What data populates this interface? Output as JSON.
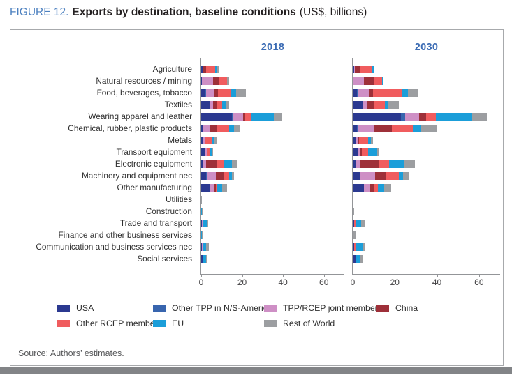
{
  "figure": {
    "label": "FIGURE 12.",
    "title": "Exports by destination, baseline conditions",
    "unit_note": "(US$, billions)"
  },
  "source": "Source: Authors’ estimates.",
  "chart_data": {
    "type": "bar",
    "orientation": "horizontal",
    "stacked": true,
    "unit": "US$, billions",
    "xlim": [
      0,
      70
    ],
    "xticks": [
      0,
      20,
      40,
      60
    ],
    "grid": false,
    "legend_position": "bottom",
    "categories": [
      "Agriculture",
      "Natural resources / mining",
      "Food, beverages, tobacco",
      "Textiles",
      "Wearing apparel and leather",
      "Chemical, rubber, plastic products",
      "Metals",
      "Transport equipment",
      "Electronic equipment",
      "Machinery and equipment nec",
      "Other manufacturing",
      "Utilities",
      "Construction",
      "Trade and transport",
      "Finance and other business services",
      "Communication and business services nec",
      "Social services"
    ],
    "panels": [
      {
        "title": "2018",
        "series": [
          {
            "name": "USA",
            "color": "#2b3990",
            "values": [
              0.7,
              0.3,
              2.0,
              4.0,
              15.0,
              1.0,
              1.0,
              1.7,
              1.0,
              2.4,
              4.4,
              0.0,
              0.1,
              0.5,
              0.1,
              0.4,
              1.0
            ]
          },
          {
            "name": "Other TPP in N/S-America",
            "color": "#3865ae",
            "values": [
              0.0,
              0.0,
              0.3,
              0.0,
              0.5,
              0.0,
              0.0,
              0.2,
              0.0,
              0.2,
              0.2,
              0.0,
              0.0,
              0.0,
              0.0,
              0.0,
              0.0
            ]
          },
          {
            "name": "TPP/RCEP joint members",
            "color": "#ce8fc5",
            "values": [
              0.3,
              5.5,
              4.0,
              1.7,
              5.0,
              3.0,
              0.7,
              0.7,
              1.4,
              4.7,
              2.0,
              0.0,
              0.0,
              0.2,
              0.0,
              0.2,
              0.0
            ]
          },
          {
            "name": "China",
            "color": "#9e3039",
            "values": [
              1.5,
              3.0,
              2.0,
              2.0,
              1.0,
              4.0,
              0.3,
              0.0,
              5.1,
              3.7,
              0.7,
              0.0,
              0.0,
              0.0,
              0.0,
              0.0,
              0.0
            ]
          },
          {
            "name": "Other RCEP members",
            "color": "#f05c5e",
            "values": [
              4.5,
              3.7,
              6.5,
              2.7,
              2.6,
              5.5,
              3.3,
              2.0,
              3.4,
              2.7,
              0.7,
              0.0,
              0.0,
              0.0,
              0.0,
              0.0,
              0.0
            ]
          },
          {
            "name": "EU",
            "color": "#1b9ed9",
            "values": [
              1.0,
              0.3,
              2.4,
              1.4,
              11.5,
              2.4,
              0.8,
              0.6,
              4.0,
              1.4,
              2.4,
              0.0,
              0.1,
              2.0,
              0.3,
              1.9,
              1.3
            ]
          },
          {
            "name": "Rest of World",
            "color": "#9c9ea1",
            "values": [
              0.7,
              0.7,
              4.7,
              2.0,
              4.0,
              3.0,
              1.4,
              0.5,
              2.8,
              1.0,
              2.3,
              0.2,
              0.5,
              0.8,
              0.8,
              1.2,
              0.7
            ]
          }
        ]
      },
      {
        "title": "2030",
        "series": [
          {
            "name": "USA",
            "color": "#2b3990",
            "values": [
              0.7,
              0.2,
              2.0,
              4.6,
              23.0,
              2.0,
              1.3,
              2.3,
              1.3,
              3.3,
              5.3,
              0.0,
              0.1,
              0.5,
              0.2,
              0.5,
              1.3
            ]
          },
          {
            "name": "Other TPP in N/S-America",
            "color": "#3865ae",
            "values": [
              0.0,
              0.0,
              0.5,
              0.0,
              2.0,
              0.5,
              0.0,
              0.2,
              0.0,
              0.3,
              0.0,
              0.0,
              0.0,
              0.0,
              0.0,
              0.0,
              0.0
            ]
          },
          {
            "name": "TPP/RCEP joint members",
            "color": "#ce8fc5",
            "values": [
              0.3,
              5.2,
              5.0,
              2.0,
              6.5,
              7.5,
              1.3,
              1.3,
              2.0,
              7.0,
              2.6,
              0.0,
              0.0,
              0.2,
              0.0,
              0.3,
              0.2
            ]
          },
          {
            "name": "China",
            "color": "#9e3039",
            "values": [
              2.6,
              4.8,
              2.0,
              3.2,
              3.5,
              8.6,
              0.3,
              0.5,
              9.2,
              5.3,
              2.3,
              0.0,
              0.0,
              0.0,
              0.0,
              0.0,
              0.0
            ]
          },
          {
            "name": "Other RCEP members",
            "color": "#f05c5e",
            "values": [
              5.6,
              3.8,
              14.0,
              5.6,
              4.6,
              10.0,
              4.3,
              3.0,
              4.8,
              6.0,
              1.6,
              0.0,
              0.0,
              0.7,
              0.0,
              0.4,
              0.0
            ]
          },
          {
            "name": "EU",
            "color": "#1b9ed9",
            "values": [
              0.7,
              0.2,
              2.7,
              1.6,
              17.0,
              3.8,
              1.3,
              4.3,
              6.8,
              2.0,
              3.0,
              0.0,
              0.0,
              2.7,
              0.3,
              3.3,
              2.0
            ]
          },
          {
            "name": "Rest of World",
            "color": "#9c9ea1",
            "values": [
              0.3,
              0.5,
              4.7,
              5.0,
              7.0,
              7.7,
              1.3,
              1.0,
              5.6,
              3.0,
              3.4,
              0.3,
              0.6,
              1.6,
              0.9,
              1.4,
              1.3
            ]
          }
        ]
      }
    ],
    "legend": {
      "items": [
        {
          "label": "USA",
          "color": "#2b3990"
        },
        {
          "label": "Other TPP in N/S-America",
          "color": "#3865ae"
        },
        {
          "label": "TPP/RCEP joint members",
          "color": "#ce8fc5"
        },
        {
          "label": "China",
          "color": "#9e3039"
        },
        {
          "label": "Other RCEP members",
          "color": "#f05c5e"
        },
        {
          "label": "EU",
          "color": "#1b9ed9"
        },
        {
          "label": "Rest of World",
          "color": "#9c9ea1"
        }
      ]
    }
  }
}
